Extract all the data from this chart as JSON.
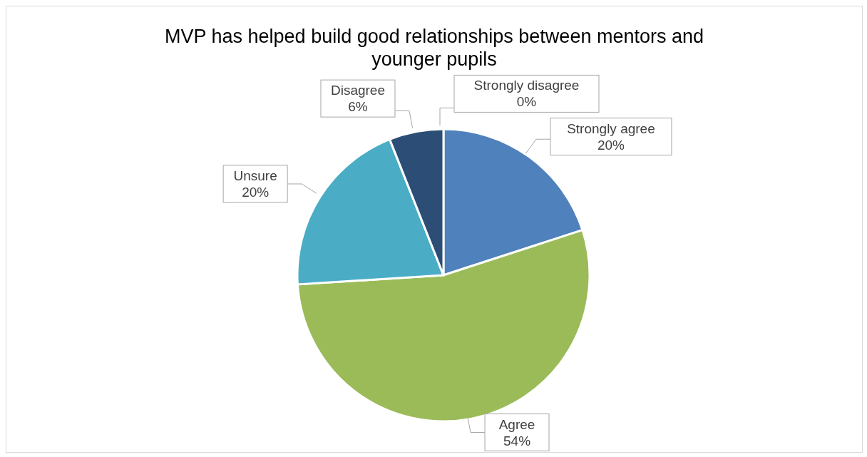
{
  "chart_data": {
    "type": "pie",
    "title": "MVP has helped build good relationships between mentors and younger pupils",
    "categories": [
      "Strongly agree",
      "Agree",
      "Unsure",
      "Disagree",
      "Strongly disagree"
    ],
    "values": [
      20,
      54,
      20,
      6,
      0
    ],
    "colors": [
      "#4f81bd",
      "#9bbb59",
      "#4bacc6",
      "#2c4d75",
      "#f79646"
    ],
    "value_labels": [
      "20%",
      "54%",
      "20%",
      "6%",
      "0%"
    ],
    "legend": false
  }
}
